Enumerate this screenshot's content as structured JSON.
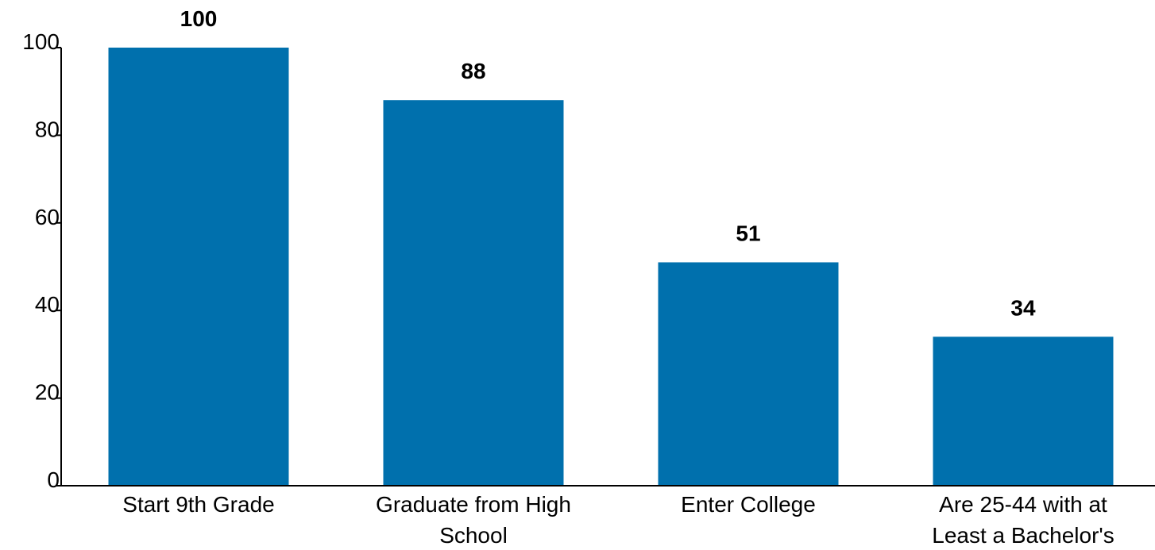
{
  "chart_data": {
    "type": "bar",
    "title": "",
    "xlabel": "",
    "ylabel": "",
    "categories": [
      "Start 9th Grade",
      "Graduate from High School",
      "Enter College",
      "Are 25-44 with at Least a Bachelor's"
    ],
    "category_lines": [
      [
        "Start 9th Grade"
      ],
      [
        "Graduate from High",
        "School"
      ],
      [
        "Enter College"
      ],
      [
        "Are 25-44 with at",
        "Least a Bachelor's"
      ]
    ],
    "values": [
      100,
      88,
      51,
      34
    ],
    "data_labels": [
      "100",
      "88",
      "51",
      "34"
    ],
    "ylim": [
      0,
      100
    ],
    "yticks": [
      0,
      20,
      40,
      60,
      80,
      100
    ],
    "ytick_labels": [
      "0",
      "20",
      "40",
      "60",
      "80",
      "100"
    ],
    "grid": false,
    "legend": "none",
    "bar_color": "#0070AD",
    "axis_color": "#000000"
  }
}
